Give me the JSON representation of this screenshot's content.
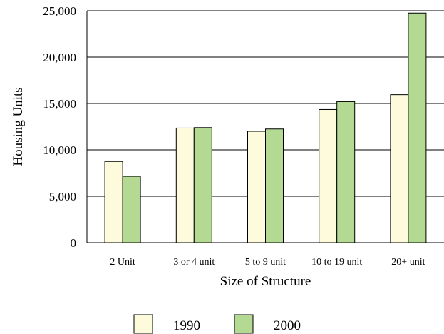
{
  "chart_data": {
    "type": "bar",
    "xlabel": "Size of Structure",
    "ylabel": "Housing Units",
    "categories": [
      "2 Unit",
      "3 or 4 unit",
      "5 to 9 unit",
      "10 to 19 unit",
      "20+ unit"
    ],
    "series": [
      {
        "name": "1990",
        "values": [
          8750,
          12350,
          12000,
          14350,
          15950
        ],
        "color": "#fdfbdc"
      },
      {
        "name": "2000",
        "values": [
          7150,
          12400,
          12250,
          15200,
          24750
        ],
        "color": "#b3d993"
      }
    ],
    "ylim": [
      0,
      25000
    ],
    "yticks": [
      0,
      5000,
      10000,
      15000,
      20000,
      25000
    ],
    "ytick_labels": [
      "0",
      "5,000",
      "10,000",
      "15,000",
      "20,000",
      "25,000"
    ],
    "grid": "horizontal",
    "legend_position": "bottom-center"
  }
}
